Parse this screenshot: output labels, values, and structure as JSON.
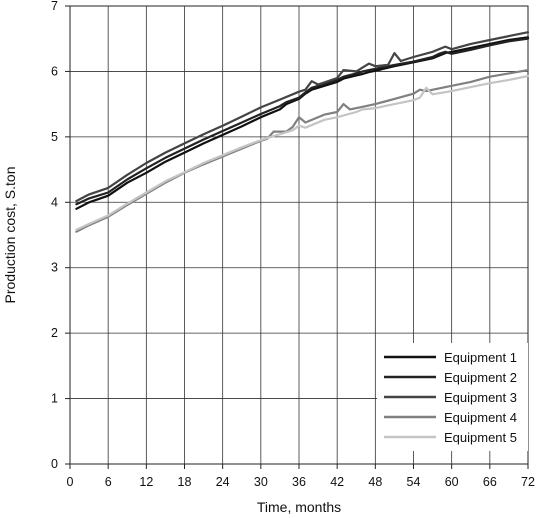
{
  "chart_data": {
    "type": "line",
    "xlabel": "Time, months",
    "ylabel": "Production cost, S.ton",
    "xlim": [
      0,
      72
    ],
    "ylim": [
      0,
      7
    ],
    "xticks": [
      0,
      6,
      12,
      18,
      24,
      30,
      36,
      42,
      48,
      54,
      60,
      66,
      72
    ],
    "yticks": [
      0,
      1,
      2,
      3,
      4,
      5,
      6,
      7
    ],
    "grid": true,
    "legend_position": "bottom-right",
    "series": [
      {
        "name": "Equipment 1",
        "color": "#111111",
        "x": [
          1,
          3,
          6,
          9,
          12,
          15,
          18,
          21,
          24,
          27,
          30,
          33,
          34,
          36,
          37,
          38,
          40,
          42,
          43,
          45,
          46,
          47,
          48,
          51,
          54,
          57,
          58,
          59,
          60,
          63,
          66,
          69,
          72
        ],
        "y": [
          3.9,
          4.0,
          4.1,
          4.3,
          4.45,
          4.62,
          4.76,
          4.9,
          5.03,
          5.16,
          5.3,
          5.42,
          5.5,
          5.58,
          5.66,
          5.72,
          5.78,
          5.84,
          5.89,
          5.94,
          5.96,
          5.99,
          6.01,
          6.08,
          6.14,
          6.2,
          6.24,
          6.28,
          6.3,
          6.36,
          6.42,
          6.48,
          6.52
        ]
      },
      {
        "name": "Equipment 2",
        "color": "#222222",
        "x": [
          1,
          3,
          6,
          9,
          12,
          15,
          18,
          21,
          24,
          27,
          30,
          33,
          34,
          36,
          37,
          38,
          40,
          42,
          43,
          45,
          46,
          47,
          48,
          51,
          54,
          57,
          58,
          59,
          60,
          63,
          66,
          69,
          72
        ],
        "y": [
          3.97,
          4.06,
          4.15,
          4.35,
          4.52,
          4.68,
          4.82,
          4.96,
          5.09,
          5.22,
          5.35,
          5.47,
          5.53,
          5.6,
          5.68,
          5.75,
          5.81,
          5.87,
          5.92,
          5.97,
          6.0,
          6.02,
          6.04,
          6.1,
          6.15,
          6.22,
          6.27,
          6.3,
          6.27,
          6.33,
          6.4,
          6.46,
          6.5
        ]
      },
      {
        "name": "Equipment 3",
        "color": "#444444",
        "x": [
          1,
          3,
          6,
          9,
          12,
          15,
          18,
          21,
          24,
          27,
          30,
          33,
          36,
          37,
          38,
          39,
          42,
          43,
          45,
          47,
          48,
          50,
          51,
          52,
          54,
          57,
          59,
          60,
          63,
          66,
          69,
          72
        ],
        "y": [
          4.02,
          4.12,
          4.22,
          4.42,
          4.6,
          4.76,
          4.9,
          5.04,
          5.17,
          5.31,
          5.45,
          5.57,
          5.69,
          5.72,
          5.85,
          5.8,
          5.9,
          6.02,
          6.0,
          6.12,
          6.08,
          6.1,
          6.28,
          6.16,
          6.22,
          6.3,
          6.38,
          6.34,
          6.42,
          6.48,
          6.54,
          6.6
        ]
      },
      {
        "name": "Equipment 4",
        "color": "#808080",
        "x": [
          1,
          3,
          6,
          9,
          12,
          15,
          18,
          21,
          24,
          27,
          30,
          31,
          32,
          34,
          35,
          36,
          37,
          40,
          42,
          43,
          44,
          46,
          48,
          51,
          54,
          55,
          56,
          58,
          60,
          63,
          66,
          69,
          72
        ],
        "y": [
          3.55,
          3.65,
          3.78,
          3.96,
          4.13,
          4.3,
          4.45,
          4.58,
          4.7,
          4.82,
          4.94,
          4.97,
          5.08,
          5.08,
          5.15,
          5.3,
          5.22,
          5.34,
          5.38,
          5.5,
          5.42,
          5.46,
          5.5,
          5.58,
          5.66,
          5.72,
          5.7,
          5.74,
          5.78,
          5.84,
          5.92,
          5.97,
          6.02
        ]
      },
      {
        "name": "Equipment 5",
        "color": "#c4c4c4",
        "x": [
          1,
          3,
          6,
          9,
          12,
          15,
          18,
          21,
          24,
          27,
          30,
          33,
          35,
          36,
          37,
          40,
          42,
          45,
          46,
          48,
          51,
          54,
          55,
          56,
          57,
          60,
          63,
          66,
          69,
          72
        ],
        "y": [
          3.58,
          3.67,
          3.8,
          3.98,
          4.15,
          4.32,
          4.46,
          4.6,
          4.72,
          4.84,
          4.95,
          5.04,
          5.1,
          5.17,
          5.14,
          5.26,
          5.3,
          5.38,
          5.42,
          5.44,
          5.5,
          5.56,
          5.6,
          5.75,
          5.65,
          5.7,
          5.76,
          5.82,
          5.87,
          5.93
        ]
      }
    ]
  }
}
